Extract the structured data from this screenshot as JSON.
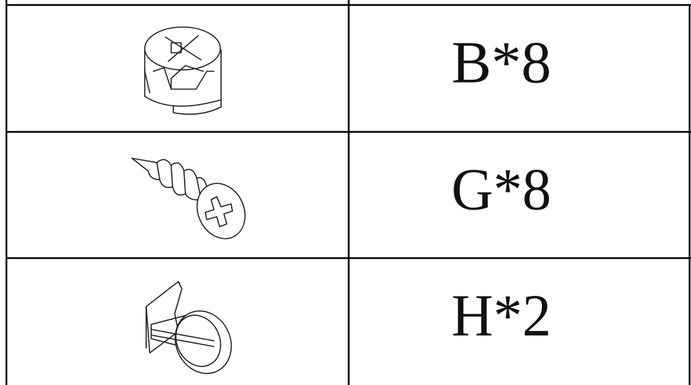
{
  "table": {
    "rows": [
      "B*8",
      "G*8",
      "H*2"
    ]
  }
}
